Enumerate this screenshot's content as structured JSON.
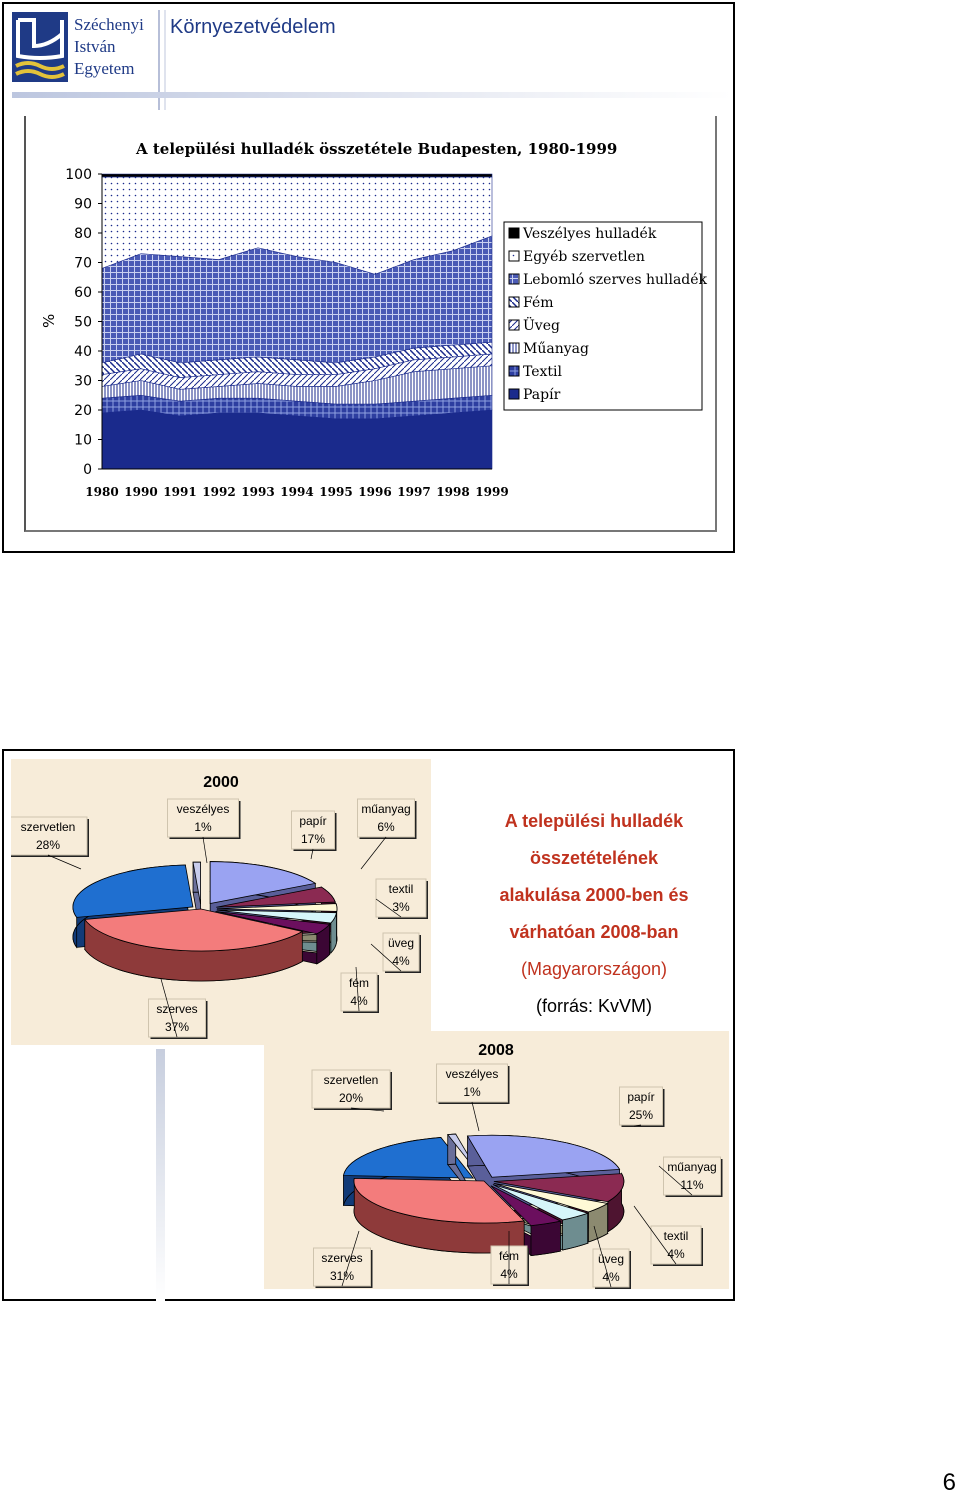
{
  "header": {
    "uni_line1": "Széchenyi",
    "uni_line2": "István",
    "uni_line3": "Egyetem",
    "topic": "Környezetvédelem"
  },
  "area_chart": {
    "title": "A települési hulladék összetétele Budapesten, 1980-1999",
    "ylabel": "%",
    "legend": [
      "Veszélyes hulladék",
      "Egyéb szervetlen",
      "Lebomló szerves hulladék",
      "Fém",
      "Üveg",
      "Műanyag",
      "Textil",
      "Papír"
    ]
  },
  "slide2": {
    "title_bold": "A települési hulladék összetételének alakulása 2000-ben és várhatóan 2008-ban",
    "title_line1": "A települési hulladék",
    "title_line2": "összetételének",
    "title_line3": "alakulása 2000-ben és",
    "title_line4": "várhatóan 2008-ban",
    "title_line5": "(Magyarországon)",
    "source": "(forrás: KvVM)"
  },
  "page_number": "6",
  "chart_data": [
    {
      "type": "area",
      "title": "A települési hulladék összetétele Budapesten, 1980-1999",
      "xlabel": "",
      "ylabel": "%",
      "x": [
        "1980",
        "1990",
        "1991",
        "1992",
        "1993",
        "1994",
        "1995",
        "1996",
        "1997",
        "1998",
        "1999"
      ],
      "ylim": [
        0,
        100
      ],
      "yticks": [
        0,
        10,
        20,
        30,
        40,
        50,
        60,
        70,
        80,
        90,
        100
      ],
      "legend_position": "right",
      "stacked": true,
      "series": [
        {
          "name": "Papír",
          "values": [
            19,
            20,
            18,
            19,
            19,
            18,
            17,
            17,
            18,
            19,
            20
          ],
          "color": "#1a2a8c"
        },
        {
          "name": "Textil",
          "values": [
            5,
            5,
            5,
            5,
            5,
            5,
            5,
            5,
            5,
            5,
            5
          ],
          "color": "#2d3ea0"
        },
        {
          "name": "Műanyag",
          "values": [
            4,
            5,
            4,
            4,
            5,
            5,
            6,
            8,
            10,
            10,
            10
          ],
          "color": "#dfe4f2"
        },
        {
          "name": "Üveg",
          "values": [
            4,
            4,
            4,
            4,
            4,
            4,
            4,
            4,
            4,
            4,
            4
          ],
          "color": "#e7e7e7"
        },
        {
          "name": "Fém",
          "values": [
            4,
            5,
            5,
            5,
            5,
            5,
            4,
            4,
            4,
            4,
            4
          ],
          "color": "#d0d4e8"
        },
        {
          "name": "Lebomló szerves hulladék",
          "values": [
            32,
            34,
            36,
            34,
            37,
            35,
            34,
            28,
            30,
            32,
            36
          ],
          "color": "#3747a8"
        },
        {
          "name": "Egyéb szervetlen",
          "values": [
            31,
            26,
            27,
            28,
            24,
            27,
            29,
            33,
            28,
            25,
            20
          ],
          "color": "#ffffff"
        },
        {
          "name": "Veszélyes hulladék",
          "values": [
            1,
            1,
            1,
            1,
            1,
            1,
            1,
            1,
            1,
            1,
            1
          ],
          "color": "#000000"
        }
      ]
    },
    {
      "type": "pie",
      "title": "2000",
      "categories": [
        "szervetlen",
        "veszélyes",
        "papír",
        "műanyag",
        "textil",
        "üveg",
        "fém",
        "szerves"
      ],
      "values": [
        28,
        1,
        17,
        6,
        3,
        4,
        4,
        37
      ],
      "labels": [
        "28%",
        "1%",
        "17%",
        "6%",
        "3%",
        "4%",
        "4%",
        "37%"
      ]
    },
    {
      "type": "pie",
      "title": "2008",
      "categories": [
        "szervetlen",
        "veszélyes",
        "papír",
        "műanyag",
        "textil",
        "üveg",
        "fém",
        "szerves"
      ],
      "values": [
        20,
        1,
        25,
        11,
        4,
        4,
        4,
        31
      ],
      "labels": [
        "20%",
        "1%",
        "25%",
        "11%",
        "4%",
        "4%",
        "4%",
        "31%"
      ]
    }
  ]
}
